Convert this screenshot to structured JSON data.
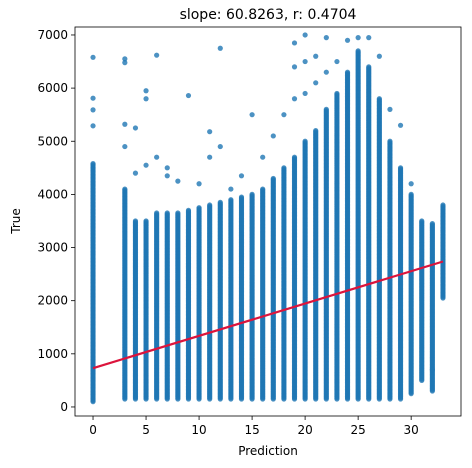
{
  "chart_data": {
    "type": "scatter",
    "title": "slope: 60.8263, r: 0.4704",
    "xlabel": "Prediction",
    "ylabel": "True",
    "xlim": [
      -1.7,
      34.7
    ],
    "ylim": [
      -170,
      7150
    ],
    "xticks": [
      0,
      5,
      10,
      15,
      20,
      25,
      30
    ],
    "yticks": [
      0,
      1000,
      2000,
      3000,
      4000,
      5000,
      6000,
      7000
    ],
    "grid": false,
    "legend": "none",
    "colors": {
      "points": "#1f77b4",
      "fit_line": "#dc143c"
    },
    "fit_line": {
      "slope": 60.8263,
      "intercept": 730,
      "x_range": [
        0,
        33
      ]
    },
    "columns": [
      {
        "x": 0,
        "y_min": 100,
        "y_max": 4580,
        "outliers": [
          5290,
          5590,
          5810,
          6580
        ]
      },
      {
        "x": 3,
        "y_min": 150,
        "y_max": 4100,
        "outliers": [
          4900,
          5320,
          6480,
          6550
        ]
      },
      {
        "x": 4,
        "y_min": 150,
        "y_max": 3500,
        "outliers": [
          4400,
          5250
        ]
      },
      {
        "x": 5,
        "y_min": 150,
        "y_max": 3500,
        "outliers": [
          4550,
          5800,
          5950
        ]
      },
      {
        "x": 6,
        "y_min": 150,
        "y_max": 3650,
        "outliers": [
          4700,
          6620
        ]
      },
      {
        "x": 7,
        "y_min": 150,
        "y_max": 3650,
        "outliers": [
          4350,
          4500
        ]
      },
      {
        "x": 8,
        "y_min": 150,
        "y_max": 3650,
        "outliers": [
          4250
        ]
      },
      {
        "x": 9,
        "y_min": 150,
        "y_max": 3700,
        "outliers": [
          5860
        ]
      },
      {
        "x": 10,
        "y_min": 150,
        "y_max": 3750,
        "outliers": [
          4200
        ]
      },
      {
        "x": 11,
        "y_min": 150,
        "y_max": 3800,
        "outliers": [
          4700,
          5180
        ]
      },
      {
        "x": 12,
        "y_min": 150,
        "y_max": 3850,
        "outliers": [
          4900,
          6750
        ]
      },
      {
        "x": 13,
        "y_min": 150,
        "y_max": 3900,
        "outliers": [
          4100
        ]
      },
      {
        "x": 14,
        "y_min": 150,
        "y_max": 3950,
        "outliers": [
          4350
        ]
      },
      {
        "x": 15,
        "y_min": 150,
        "y_max": 4000,
        "outliers": [
          5500
        ]
      },
      {
        "x": 16,
        "y_min": 150,
        "y_max": 4100,
        "outliers": [
          4700
        ]
      },
      {
        "x": 17,
        "y_min": 150,
        "y_max": 4300,
        "outliers": [
          5100
        ]
      },
      {
        "x": 18,
        "y_min": 150,
        "y_max": 4500,
        "outliers": [
          5500
        ]
      },
      {
        "x": 19,
        "y_min": 150,
        "y_max": 4700,
        "outliers": [
          5800,
          6400,
          6850
        ]
      },
      {
        "x": 20,
        "y_min": 150,
        "y_max": 5000,
        "outliers": [
          5900,
          6500,
          7000
        ]
      },
      {
        "x": 21,
        "y_min": 150,
        "y_max": 5200,
        "outliers": [
          6100,
          6600
        ]
      },
      {
        "x": 22,
        "y_min": 150,
        "y_max": 5600,
        "outliers": [
          6300,
          6950
        ]
      },
      {
        "x": 23,
        "y_min": 150,
        "y_max": 5900,
        "outliers": [
          6500
        ]
      },
      {
        "x": 24,
        "y_min": 150,
        "y_max": 6300,
        "outliers": [
          6900
        ]
      },
      {
        "x": 25,
        "y_min": 150,
        "y_max": 6700,
        "outliers": [
          6950
        ]
      },
      {
        "x": 26,
        "y_min": 150,
        "y_max": 6400,
        "outliers": [
          6950
        ]
      },
      {
        "x": 27,
        "y_min": 150,
        "y_max": 5800,
        "outliers": [
          6600
        ]
      },
      {
        "x": 28,
        "y_min": 150,
        "y_max": 5000,
        "outliers": [
          5600
        ]
      },
      {
        "x": 29,
        "y_min": 150,
        "y_max": 4500,
        "outliers": [
          5300
        ]
      },
      {
        "x": 30,
        "y_min": 250,
        "y_max": 4000,
        "outliers": [
          4200
        ]
      },
      {
        "x": 31,
        "y_min": 500,
        "y_max": 3500,
        "outliers": []
      },
      {
        "x": 32,
        "y_min": 300,
        "y_max": 3450,
        "outliers": [
          700
        ]
      },
      {
        "x": 33,
        "y_min": 2050,
        "y_max": 3800,
        "outliers": []
      }
    ]
  }
}
